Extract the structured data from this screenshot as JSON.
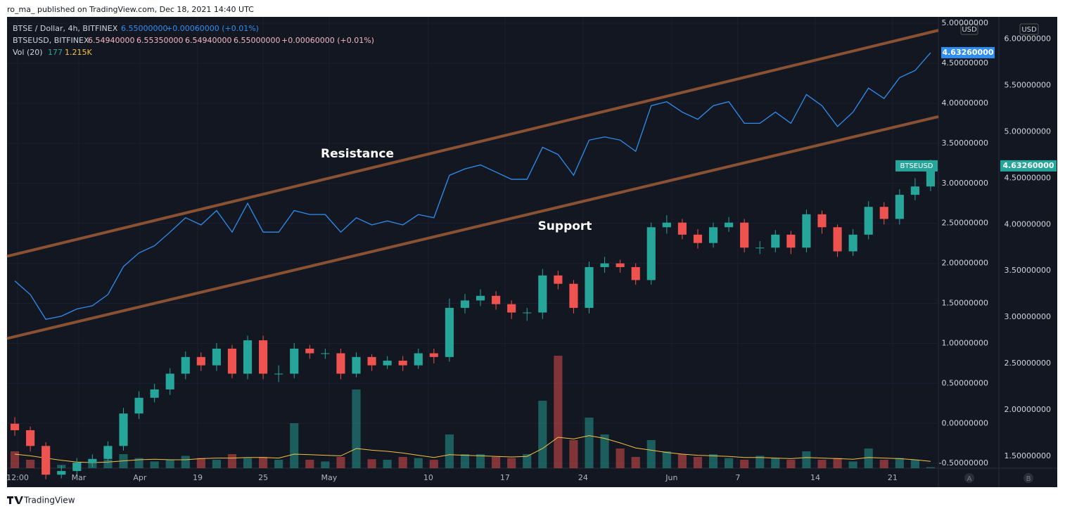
{
  "header": {
    "published": "ro_ma_ published on TradingView.com, Dec 18, 2021 14:40 UTC",
    "brand": "TradingView"
  },
  "chart_data": {
    "type": "candlestick",
    "legend": {
      "line1": [
        "BTSE / Dollar, 4h, BITFINEX",
        "6.55000000",
        "+0.00060000 (+0.01%)"
      ],
      "line2": [
        "BTSEUSD, BITFINEX",
        "6.54940000",
        "6.55350000",
        "6.54940000",
        "6.55000000",
        "+0.00060000 (+0.01%)"
      ],
      "vol": "Vol (20)",
      "vol_ma_label": "1.215K"
    },
    "symbol": "BTSEUSD",
    "currency": "USD",
    "scale_names": [
      "A",
      "B"
    ],
    "xlim": [
      0,
      60
    ],
    "xticks": [
      {
        "value": 0.68,
        "label": "12:00"
      },
      {
        "value": 4.62,
        "label": "Mar"
      },
      {
        "value": 8.56,
        "label": "Apr"
      },
      {
        "value": 12.28,
        "label": "19"
      },
      {
        "value": 16.5,
        "label": "25"
      },
      {
        "value": 20.75,
        "label": "May"
      },
      {
        "value": 27.14,
        "label": "10"
      },
      {
        "value": 32.08,
        "label": "17"
      },
      {
        "value": 37.11,
        "label": "24"
      },
      {
        "value": 42.82,
        "label": "Jun"
      },
      {
        "value": 47.08,
        "label": "7"
      },
      {
        "value": 52.07,
        "label": "14"
      },
      {
        "value": 57.05,
        "label": "21"
      }
    ],
    "ylim": [
      -0.56,
      5.08
    ],
    "yticks": [
      {
        "value": 5,
        "label": "5.00000000"
      },
      {
        "value": 4.5,
        "label": "4.50000000"
      },
      {
        "value": 4,
        "label": "4.00000000"
      },
      {
        "value": 3.5,
        "label": "3.50000000"
      },
      {
        "value": 3,
        "label": "3.00000000"
      },
      {
        "value": 2.5,
        "label": "2.50000000"
      },
      {
        "value": 2,
        "label": "2.00000000"
      },
      {
        "value": 1.5,
        "label": "1.50000000"
      },
      {
        "value": 1,
        "label": "1.00000000"
      },
      {
        "value": 0.5,
        "label": "0.50000000"
      },
      {
        "value": 0,
        "label": "0.00000000"
      },
      {
        "value": -0.5,
        "label": "-0.50000000"
      }
    ],
    "y2lim": [
      1.37,
      6.24
    ],
    "y2ticks": [
      {
        "value": 6,
        "label": "6.00000000"
      },
      {
        "value": 5.5,
        "label": "5.50000000"
      },
      {
        "value": 5,
        "label": "5.00000000"
      },
      {
        "value": 4.5,
        "label": "4.50000000"
      },
      {
        "value": 4,
        "label": "4.00000000"
      },
      {
        "value": 3.5,
        "label": "3.50000000"
      },
      {
        "value": 3,
        "label": "3.00000000"
      },
      {
        "value": 2.5,
        "label": "2.50000000"
      },
      {
        "value": 2,
        "label": "2.00000000"
      },
      {
        "value": 1.5,
        "label": "1.50000000"
      }
    ],
    "grid": true,
    "candles": {
      "axis": "y2",
      "up_color": "#26a69a",
      "down_color": "#ef5350",
      "last_label": "4.63260000",
      "open": [
        1.85,
        1.78,
        1.61,
        1.3,
        1.34,
        1.43,
        1.47,
        1.61,
        1.96,
        2.13,
        2.22,
        2.39,
        2.57,
        2.48,
        2.66,
        2.39,
        2.75,
        2.39,
        2.39,
        2.66,
        2.61,
        2.61,
        2.39,
        2.57,
        2.48,
        2.53,
        2.48,
        2.61,
        2.57,
        3.1,
        3.18,
        3.23,
        3.14,
        3.05,
        3.05,
        3.45,
        3.36,
        3.1,
        3.54,
        3.58,
        3.54,
        3.4,
        3.97,
        4.02,
        3.89,
        3.8,
        3.97,
        4.02,
        3.75,
        3.75,
        3.89,
        3.75,
        4.11,
        3.97,
        3.71,
        3.89,
        4.19,
        4.06,
        4.32,
        4.41
      ],
      "high": [
        1.92,
        1.82,
        1.65,
        1.4,
        1.48,
        1.52,
        1.66,
        2.02,
        2.2,
        2.28,
        2.45,
        2.63,
        2.62,
        2.72,
        2.7,
        2.8,
        2.8,
        2.48,
        2.72,
        2.7,
        2.66,
        2.66,
        2.62,
        2.6,
        2.58,
        2.58,
        2.66,
        2.66,
        3.2,
        3.25,
        3.3,
        3.28,
        3.18,
        3.1,
        3.52,
        3.5,
        3.4,
        3.6,
        3.65,
        3.62,
        3.58,
        4.02,
        4.1,
        4.06,
        3.95,
        4.02,
        4.08,
        4.06,
        3.82,
        3.94,
        3.93,
        4.16,
        4.15,
        4.0,
        3.95,
        4.25,
        4.24,
        4.38,
        4.5,
        4.7
      ],
      "low": [
        1.72,
        1.55,
        1.25,
        1.26,
        1.3,
        1.38,
        1.42,
        1.56,
        1.9,
        2.08,
        2.16,
        2.33,
        2.42,
        2.42,
        2.34,
        2.33,
        2.33,
        2.3,
        2.34,
        2.55,
        2.55,
        2.33,
        2.35,
        2.42,
        2.44,
        2.42,
        2.44,
        2.5,
        2.52,
        3.04,
        3.12,
        3.08,
        2.98,
        2.96,
        2.98,
        3.3,
        3.04,
        3.04,
        3.48,
        3.48,
        3.35,
        3.35,
        3.9,
        3.84,
        3.74,
        3.75,
        3.92,
        3.7,
        3.68,
        3.7,
        3.68,
        3.7,
        3.9,
        3.65,
        3.66,
        3.84,
        4.0,
        4.0,
        4.26,
        4.36
      ],
      "close": [
        1.78,
        1.61,
        1.3,
        1.34,
        1.43,
        1.47,
        1.61,
        1.96,
        2.13,
        2.22,
        2.39,
        2.57,
        2.48,
        2.66,
        2.39,
        2.75,
        2.39,
        2.39,
        2.66,
        2.61,
        2.61,
        2.39,
        2.57,
        2.48,
        2.53,
        2.48,
        2.61,
        2.57,
        3.1,
        3.18,
        3.23,
        3.14,
        3.05,
        3.05,
        3.45,
        3.36,
        3.1,
        3.54,
        3.58,
        3.54,
        3.4,
        3.97,
        4.02,
        3.89,
        3.8,
        3.97,
        4.02,
        3.75,
        3.75,
        3.89,
        3.75,
        4.11,
        3.97,
        3.71,
        3.89,
        4.19,
        4.06,
        4.32,
        4.41,
        4.6326
      ]
    },
    "line": {
      "axis": "y",
      "color": "#2f8ef0"
    },
    "volume": {
      "vlim": [
        0,
        25000
      ],
      "ma_color": "#f5c242",
      "values": [
        3000,
        1500,
        800,
        600,
        900,
        1200,
        1500,
        2500,
        1800,
        1200,
        1500,
        2200,
        1800,
        1500,
        2500,
        1800,
        2000,
        1500,
        8000,
        1500,
        1200,
        2000,
        14000,
        1600,
        1500,
        2000,
        1800,
        1500,
        6000,
        2500,
        2500,
        2000,
        1800,
        2500,
        12000,
        20000,
        5000,
        9000,
        6000,
        3500,
        2000,
        5000,
        3000,
        2500,
        2000,
        2500,
        1800,
        1500,
        2200,
        1800,
        1500,
        3000,
        1500,
        1800,
        1200,
        3500,
        1500,
        1800,
        1500,
        177
      ],
      "ma": [
        2500,
        2200,
        1800,
        1400,
        1100,
        1000,
        1100,
        1300,
        1500,
        1600,
        1500,
        1500,
        1700,
        1800,
        1800,
        1900,
        1900,
        1800,
        2500,
        2400,
        2300,
        2200,
        3500,
        3200,
        3000,
        2700,
        2300,
        1900,
        2400,
        2300,
        2200,
        2100,
        2000,
        2100,
        3500,
        5500,
        5200,
        5800,
        5300,
        4500,
        3600,
        3200,
        2800,
        2500,
        2300,
        2200,
        2100,
        1900,
        1900,
        1800,
        1700,
        1900,
        1800,
        1700,
        1600,
        1900,
        1800,
        1700,
        1500,
        1215
      ]
    },
    "trendlines": [
      {
        "color": "#8a5232",
        "x": [
          0,
          60
        ],
        "y": [
          2.088,
          4.912
        ]
      },
      {
        "color": "#8a5232",
        "x": [
          0,
          60
        ],
        "y": [
          1.061,
          3.833
        ]
      }
    ],
    "annotations": [
      "Resistance",
      "Support"
    ]
  }
}
